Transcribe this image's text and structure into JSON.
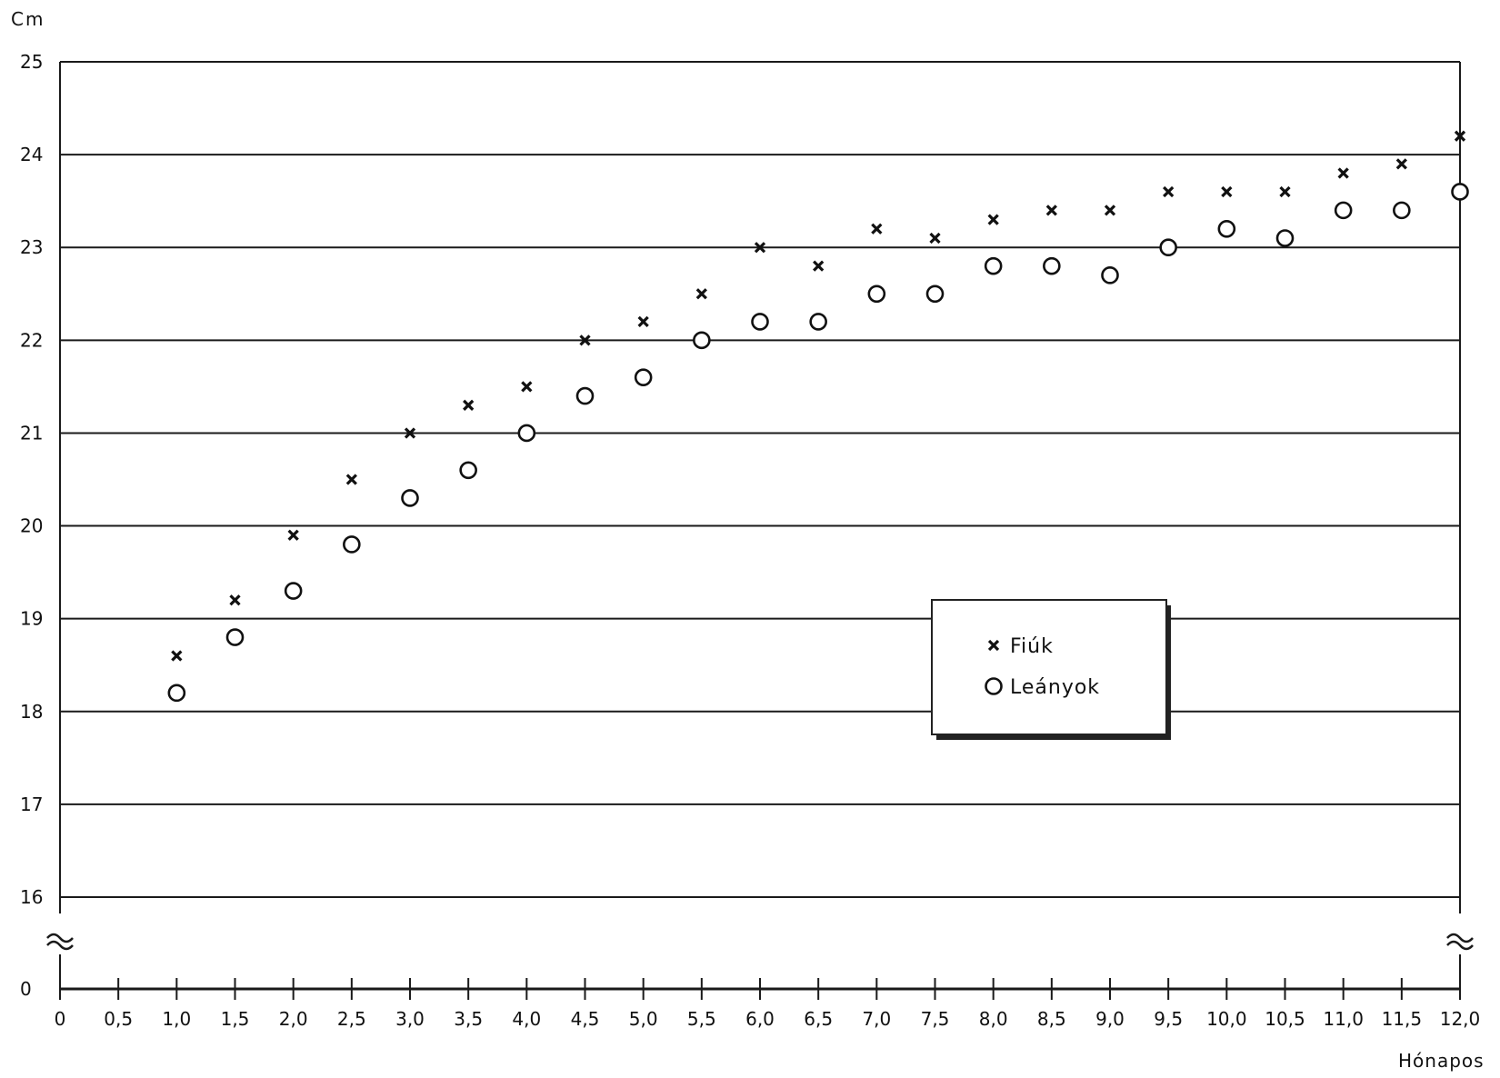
{
  "chart_data": {
    "type": "scatter",
    "ylabel": "Cm",
    "xlabel": "Hónapos",
    "xlim": [
      0,
      12
    ],
    "ylim_upper": [
      16,
      25
    ],
    "y_break_label": "0",
    "x_ticks": [
      0,
      0.5,
      1,
      1.5,
      2,
      2.5,
      3,
      3.5,
      4,
      4.5,
      5,
      5.5,
      6,
      6.5,
      7,
      7.5,
      8,
      8.5,
      9,
      9.5,
      10,
      10.5,
      11,
      11.5,
      12
    ],
    "x_tick_labels": [
      "0",
      "0,5",
      "1,0",
      "1,5",
      "2,0",
      "2,5",
      "3,0",
      "3,5",
      "4,0",
      "4,5",
      "5,0",
      "5,5",
      "6,0",
      "6,5",
      "7,0",
      "7,5",
      "8,0",
      "8,5",
      "9,0",
      "9,5",
      "10,0",
      "10,5",
      "11,0",
      "11,5",
      "12,0"
    ],
    "y_ticks": [
      16,
      17,
      18,
      19,
      20,
      21,
      22,
      23,
      24,
      25
    ],
    "y_tick_labels": [
      "16",
      "17",
      "18",
      "19",
      "20",
      "21",
      "22",
      "23",
      "24",
      "25"
    ],
    "grid": true,
    "legend_position": "center-right",
    "series": [
      {
        "name": "Fiúk",
        "marker": "x",
        "x": [
          1.0,
          1.5,
          2.0,
          2.5,
          3.0,
          3.5,
          4.0,
          4.5,
          5.0,
          5.5,
          6.0,
          6.5,
          7.0,
          7.5,
          8.0,
          8.5,
          9.0,
          9.5,
          10.0,
          10.5,
          11.0,
          11.5,
          12.0
        ],
        "y": [
          18.6,
          19.2,
          19.9,
          20.5,
          21.0,
          21.3,
          21.5,
          22.0,
          22.2,
          22.5,
          23.0,
          22.8,
          23.2,
          23.1,
          23.3,
          23.4,
          23.4,
          23.6,
          23.6,
          23.6,
          23.8,
          23.9,
          24.2
        ]
      },
      {
        "name": "Leányok",
        "marker": "circle",
        "x": [
          1.0,
          1.5,
          2.0,
          2.5,
          3.0,
          3.5,
          4.0,
          4.5,
          5.0,
          5.5,
          6.0,
          6.5,
          7.0,
          7.5,
          8.0,
          8.5,
          9.0,
          9.5,
          10.0,
          10.5,
          11.0,
          11.5,
          12.0
        ],
        "y": [
          18.2,
          18.8,
          19.3,
          19.8,
          20.3,
          20.6,
          21.0,
          21.4,
          21.6,
          22.0,
          22.2,
          22.2,
          22.5,
          22.5,
          22.8,
          22.8,
          22.7,
          23.0,
          23.2,
          23.1,
          23.4,
          23.4,
          23.6
        ]
      }
    ]
  }
}
